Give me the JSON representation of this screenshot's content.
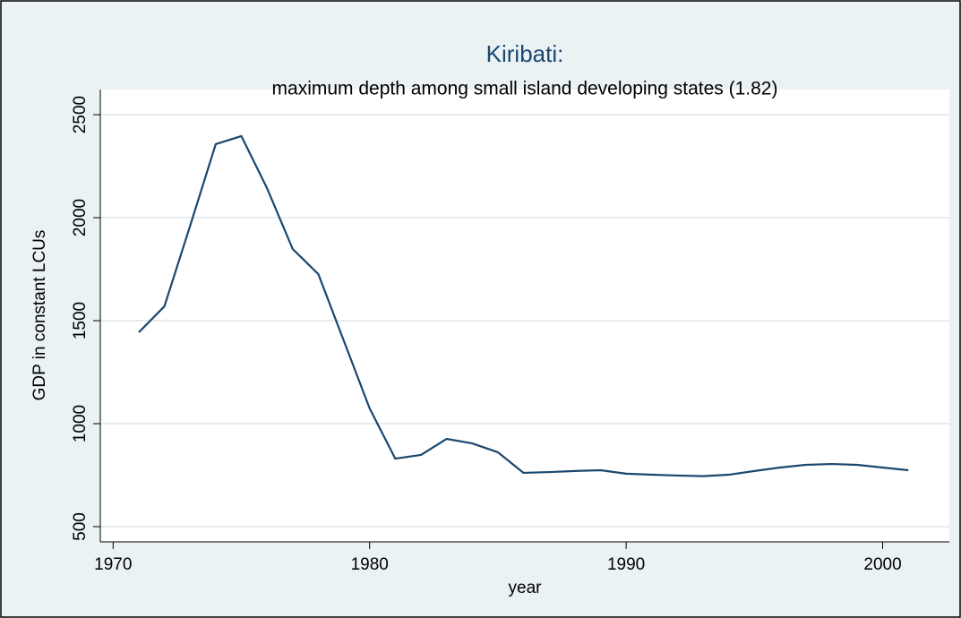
{
  "chart_data": {
    "type": "line",
    "title": "Kiribati:",
    "subtitle": "maximum depth among small island developing states (1.82)",
    "xlabel": "year",
    "ylabel": "GDP in constant LCUs",
    "x": [
      1971,
      1972,
      1973,
      1974,
      1975,
      1976,
      1977,
      1978,
      1979,
      1980,
      1981,
      1982,
      1983,
      1984,
      1985,
      1986,
      1987,
      1988,
      1989,
      1990,
      1991,
      1992,
      1993,
      1994,
      1995,
      1996,
      1997,
      1998,
      1999,
      2000,
      2001
    ],
    "series": [
      {
        "name": "GDP in constant LCUs",
        "color": "#1a476f",
        "values": [
          1443,
          1570,
          1960,
          2357,
          2396,
          2143,
          1848,
          1726,
          1400,
          1074,
          830,
          848,
          926,
          904,
          861,
          761,
          765,
          770,
          774,
          757,
          752,
          748,
          745,
          752,
          770,
          787,
          800,
          804,
          800,
          787,
          774
        ]
      }
    ],
    "xlim": [
      1969.5,
      2002.6
    ],
    "xticks": [
      1970,
      1980,
      1990,
      2000
    ],
    "ylim": [
      426,
      2622
    ],
    "yticks": [
      500,
      1000,
      1500,
      2000,
      2500
    ],
    "grid": true
  }
}
